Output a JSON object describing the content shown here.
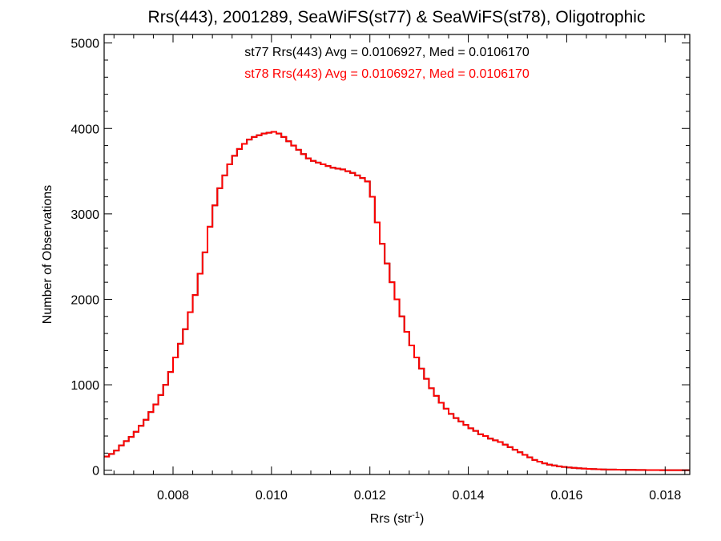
{
  "chart_data": {
    "type": "histogram",
    "title": "Rrs(443), 2001289, SeaWiFS(st77) & SeaWiFS(st78), Oligotrophic",
    "xlabel": "Rrs (str",
    "xlabel_superscript": "-1",
    "xlabel_suffix": ")",
    "ylabel": "Number of Observations",
    "xlim": [
      0.0066,
      0.0185
    ],
    "ylim": [
      -50,
      5100
    ],
    "x_ticks": [
      0.008,
      0.01,
      0.012,
      0.014,
      0.016,
      0.018
    ],
    "x_tick_labels": [
      "0.008",
      "0.010",
      "0.012",
      "0.014",
      "0.016",
      "0.018"
    ],
    "y_ticks": [
      0,
      1000,
      2000,
      3000,
      4000,
      5000
    ],
    "y_tick_labels": [
      "0",
      "1000",
      "2000",
      "3000",
      "4000",
      "5000"
    ],
    "annotations": [
      {
        "text": "st77 Rrs(443) Avg = 0.0106927, Med = 0.0106170",
        "color": "#000000"
      },
      {
        "text": "st78 Rrs(443) Avg = 0.0106927, Med = 0.0106170",
        "color": "#ff0000"
      }
    ],
    "series": [
      {
        "name": "st77",
        "color": "#000000",
        "x": [
          0.0066,
          0.0067,
          0.0068,
          0.0069,
          0.007,
          0.0071,
          0.0072,
          0.0073,
          0.0074,
          0.0075,
          0.0076,
          0.0077,
          0.0078,
          0.0079,
          0.008,
          0.0081,
          0.0082,
          0.0083,
          0.0084,
          0.0085,
          0.0086,
          0.0087,
          0.0088,
          0.0089,
          0.009,
          0.0091,
          0.0092,
          0.0093,
          0.0094,
          0.0095,
          0.0096,
          0.0097,
          0.0098,
          0.0099,
          0.01,
          0.0101,
          0.0102,
          0.0103,
          0.0104,
          0.0105,
          0.0106,
          0.0107,
          0.0108,
          0.0109,
          0.011,
          0.0111,
          0.0112,
          0.0113,
          0.0114,
          0.0115,
          0.0116,
          0.0117,
          0.0118,
          0.0119,
          0.012,
          0.0121,
          0.0122,
          0.0123,
          0.0124,
          0.0125,
          0.0126,
          0.0127,
          0.0128,
          0.0129,
          0.013,
          0.0131,
          0.0132,
          0.0133,
          0.0134,
          0.0135,
          0.0136,
          0.0137,
          0.0138,
          0.0139,
          0.014,
          0.0141,
          0.0142,
          0.0143,
          0.0144,
          0.0145,
          0.0146,
          0.0147,
          0.0148,
          0.0149,
          0.015,
          0.0151,
          0.0152,
          0.0153,
          0.0154,
          0.0155,
          0.0156,
          0.0157,
          0.0158,
          0.0159,
          0.016,
          0.0161,
          0.0162,
          0.0163,
          0.0164,
          0.0165,
          0.0166,
          0.0167,
          0.0168,
          0.0169,
          0.017,
          0.0171,
          0.0172,
          0.0173,
          0.0174,
          0.0175,
          0.0176,
          0.0177,
          0.0178,
          0.0179,
          0.018,
          0.0181,
          0.0182,
          0.0183,
          0.0184
        ],
        "values": [
          160,
          190,
          230,
          290,
          340,
          390,
          450,
          520,
          590,
          680,
          770,
          880,
          1000,
          1150,
          1320,
          1480,
          1650,
          1850,
          2050,
          2300,
          2550,
          2850,
          3100,
          3300,
          3450,
          3580,
          3680,
          3760,
          3820,
          3870,
          3900,
          3920,
          3940,
          3950,
          3960,
          3940,
          3900,
          3850,
          3800,
          3750,
          3700,
          3650,
          3620,
          3600,
          3580,
          3560,
          3540,
          3530,
          3520,
          3500,
          3480,
          3450,
          3420,
          3380,
          3200,
          2900,
          2650,
          2420,
          2200,
          2000,
          1800,
          1620,
          1460,
          1320,
          1190,
          1070,
          960,
          870,
          790,
          720,
          660,
          610,
          570,
          530,
          490,
          460,
          420,
          400,
          370,
          350,
          330,
          300,
          270,
          240,
          210,
          180,
          150,
          120,
          100,
          80,
          65,
          55,
          45,
          38,
          32,
          27,
          23,
          19,
          16,
          13,
          11,
          9,
          8,
          7,
          6,
          5,
          4,
          4,
          3,
          3,
          2,
          2,
          2,
          1,
          1,
          1,
          1,
          1,
          1
        ]
      },
      {
        "name": "st78",
        "color": "#ff0000",
        "x": [
          0.0066,
          0.0067,
          0.0068,
          0.0069,
          0.007,
          0.0071,
          0.0072,
          0.0073,
          0.0074,
          0.0075,
          0.0076,
          0.0077,
          0.0078,
          0.0079,
          0.008,
          0.0081,
          0.0082,
          0.0083,
          0.0084,
          0.0085,
          0.0086,
          0.0087,
          0.0088,
          0.0089,
          0.009,
          0.0091,
          0.0092,
          0.0093,
          0.0094,
          0.0095,
          0.0096,
          0.0097,
          0.0098,
          0.0099,
          0.01,
          0.0101,
          0.0102,
          0.0103,
          0.0104,
          0.0105,
          0.0106,
          0.0107,
          0.0108,
          0.0109,
          0.011,
          0.0111,
          0.0112,
          0.0113,
          0.0114,
          0.0115,
          0.0116,
          0.0117,
          0.0118,
          0.0119,
          0.012,
          0.0121,
          0.0122,
          0.0123,
          0.0124,
          0.0125,
          0.0126,
          0.0127,
          0.0128,
          0.0129,
          0.013,
          0.0131,
          0.0132,
          0.0133,
          0.0134,
          0.0135,
          0.0136,
          0.0137,
          0.0138,
          0.0139,
          0.014,
          0.0141,
          0.0142,
          0.0143,
          0.0144,
          0.0145,
          0.0146,
          0.0147,
          0.0148,
          0.0149,
          0.015,
          0.0151,
          0.0152,
          0.0153,
          0.0154,
          0.0155,
          0.0156,
          0.0157,
          0.0158,
          0.0159,
          0.016,
          0.0161,
          0.0162,
          0.0163,
          0.0164,
          0.0165,
          0.0166,
          0.0167,
          0.0168,
          0.0169,
          0.017,
          0.0171,
          0.0172,
          0.0173,
          0.0174,
          0.0175,
          0.0176,
          0.0177,
          0.0178,
          0.0179,
          0.018,
          0.0181,
          0.0182,
          0.0183,
          0.0184
        ],
        "values": [
          160,
          190,
          230,
          290,
          340,
          390,
          450,
          520,
          590,
          680,
          770,
          880,
          1000,
          1150,
          1320,
          1480,
          1650,
          1850,
          2050,
          2300,
          2550,
          2850,
          3100,
          3300,
          3450,
          3580,
          3680,
          3760,
          3820,
          3870,
          3900,
          3920,
          3940,
          3950,
          3960,
          3940,
          3900,
          3850,
          3800,
          3750,
          3700,
          3650,
          3620,
          3600,
          3580,
          3560,
          3540,
          3530,
          3520,
          3500,
          3480,
          3450,
          3420,
          3380,
          3200,
          2900,
          2650,
          2420,
          2200,
          2000,
          1800,
          1620,
          1460,
          1320,
          1190,
          1070,
          960,
          870,
          790,
          720,
          660,
          610,
          570,
          530,
          490,
          460,
          420,
          400,
          370,
          350,
          330,
          300,
          270,
          240,
          210,
          180,
          150,
          120,
          100,
          80,
          65,
          55,
          45,
          38,
          32,
          27,
          23,
          19,
          16,
          13,
          11,
          9,
          8,
          7,
          6,
          5,
          4,
          4,
          3,
          3,
          2,
          2,
          2,
          1,
          1,
          1,
          1,
          1,
          1
        ]
      }
    ]
  }
}
